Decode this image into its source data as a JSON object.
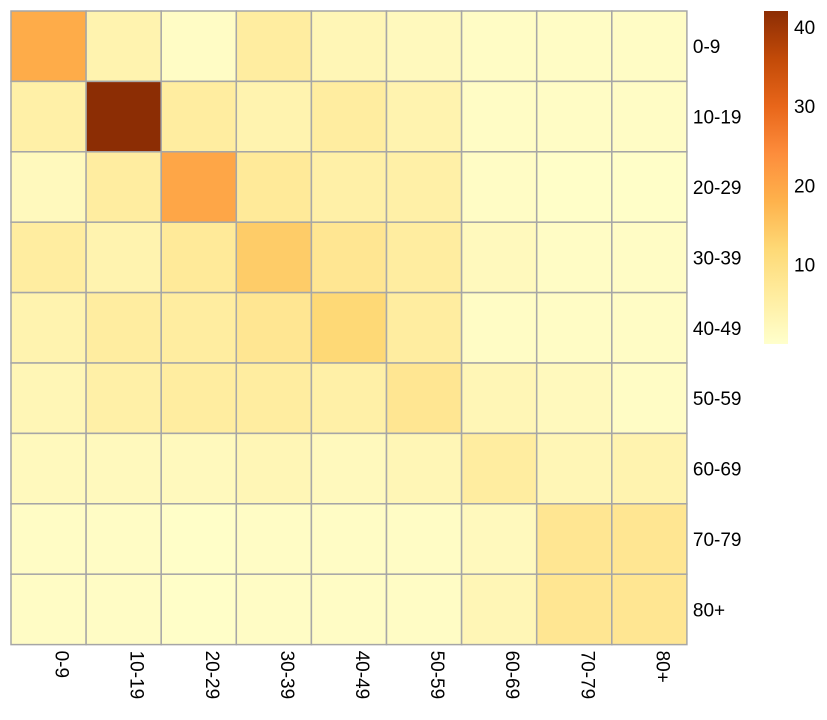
{
  "chart_data": {
    "type": "heatmap",
    "title": "",
    "xlabel": "",
    "ylabel": "",
    "rows": [
      "0-9",
      "10-19",
      "20-29",
      "30-39",
      "40-49",
      "50-59",
      "60-69",
      "70-79",
      "80+"
    ],
    "cols": [
      "0-9",
      "10-19",
      "20-29",
      "30-39",
      "40-49",
      "50-59",
      "60-69",
      "70-79",
      "80+"
    ],
    "values": [
      [
        19,
        4,
        1,
        6,
        3,
        2,
        1,
        1,
        1
      ],
      [
        5,
        42,
        6,
        4,
        6,
        4,
        1,
        1,
        1
      ],
      [
        2,
        6,
        20,
        7,
        5,
        5,
        1,
        0.5,
        0.5
      ],
      [
        6,
        4,
        7,
        14,
        8,
        6,
        2,
        1,
        1
      ],
      [
        4,
        6,
        6,
        8,
        12,
        6,
        1,
        1,
        1
      ],
      [
        3,
        5,
        6,
        6,
        5,
        8,
        3,
        2,
        1
      ],
      [
        2,
        2,
        2,
        3,
        2,
        3,
        6,
        3,
        4
      ],
      [
        1,
        1,
        0.5,
        1,
        1,
        1,
        2,
        8,
        8
      ],
      [
        1,
        1,
        0.5,
        1,
        1,
        1,
        3,
        8,
        8
      ]
    ],
    "color_scale": {
      "min": 0,
      "max": 42,
      "ticks": [
        10,
        20,
        30,
        40
      ],
      "colors": [
        "#ffffcc",
        "#ffeda0",
        "#fed976",
        "#feb24c",
        "#fd8d3c",
        "#e8661a",
        "#c24a08",
        "#8c2d04"
      ]
    },
    "cell_border_color": "#a6a6a6"
  }
}
